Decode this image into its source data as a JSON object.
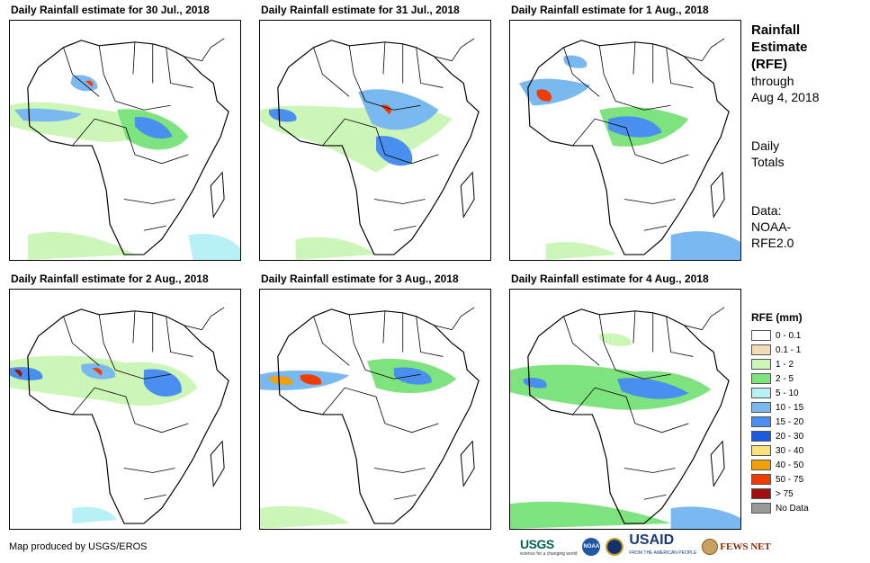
{
  "panels": [
    {
      "title": "Daily Rainfall estimate for 30 Jul., 2018"
    },
    {
      "title": "Daily Rainfall estimate for 31 Jul., 2018"
    },
    {
      "title": "Daily Rainfall estimate for 1 Aug., 2018"
    },
    {
      "title": "Daily Rainfall estimate for 2 Aug., 2018"
    },
    {
      "title": "Daily Rainfall estimate for 3 Aug., 2018"
    },
    {
      "title": "Daily Rainfall estimate for 4 Aug., 2018"
    }
  ],
  "side": {
    "title_line1": "Rainfall",
    "title_line2": "Estimate",
    "title_line3": "(RFE)",
    "through_line1": "through",
    "through_line2": "Aug 4, 2018",
    "daily_line1": "Daily",
    "daily_line2": "Totals",
    "data_line1": "Data:",
    "data_line2": "NOAA-",
    "data_line3": "RFE2.0"
  },
  "legend": {
    "title": "RFE (mm)",
    "items": [
      {
        "label": "0 - 0.1",
        "color": "#ffffff"
      },
      {
        "label": "0.1 - 1",
        "color": "#f2dcb8"
      },
      {
        "label": "1 - 2",
        "color": "#ccf5b8"
      },
      {
        "label": "2 - 5",
        "color": "#7ee27e"
      },
      {
        "label": "5 - 10",
        "color": "#b8f0f8"
      },
      {
        "label": "10 - 15",
        "color": "#7ab8f0"
      },
      {
        "label": "15 - 20",
        "color": "#4a8ef0"
      },
      {
        "label": "20 - 30",
        "color": "#1c5ae0"
      },
      {
        "label": "30 - 40",
        "color": "#f8e07a"
      },
      {
        "label": "40 - 50",
        "color": "#f0a000"
      },
      {
        "label": "50 - 75",
        "color": "#f03c00"
      },
      {
        "label": "> 75",
        "color": "#a01010"
      },
      {
        "label": "No Data",
        "color": "#999999"
      }
    ]
  },
  "footer": {
    "credit": "Map produced by USGS/EROS"
  },
  "logos": {
    "usgs": "USGS",
    "usgs_tagline": "science for a changing world",
    "noaa": "NOAA",
    "usaid": "USAID",
    "usaid_tagline": "FROM THE AMERICAN PEOPLE",
    "fews": "FEWS NET"
  }
}
